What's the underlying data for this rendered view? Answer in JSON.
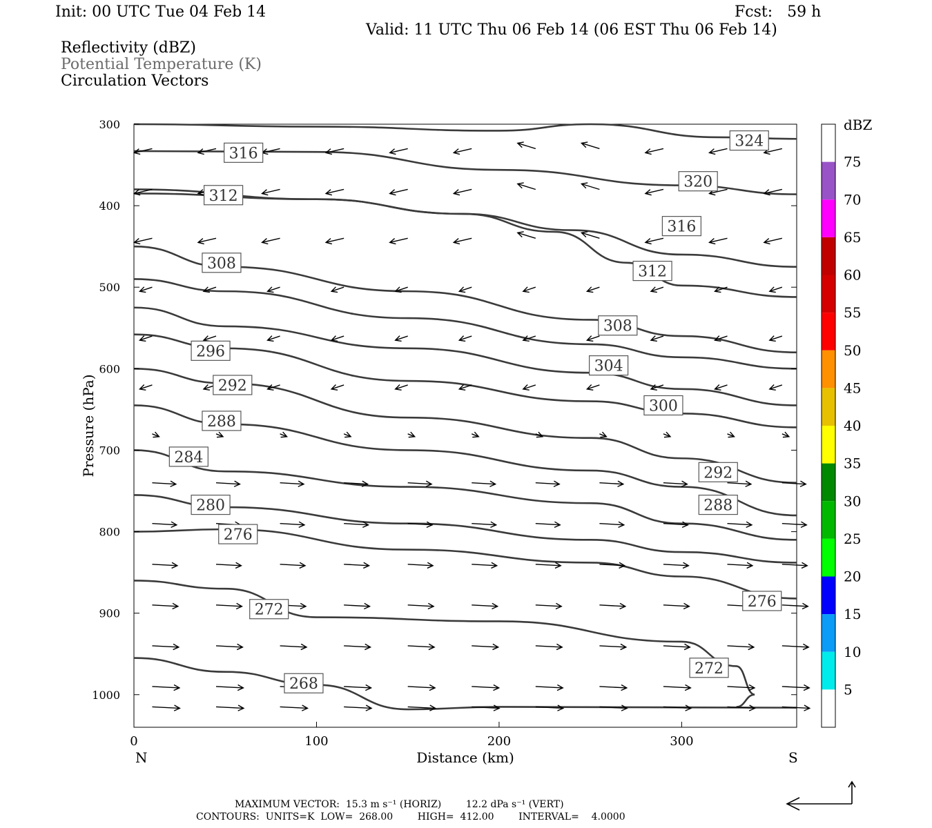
{
  "header": {
    "init": "Init: 00 UTC Tue 04 Feb 14",
    "fcst": "Fcst:   59 h",
    "valid": "Valid: 11 UTC Thu 06 Feb 14 (06 EST Thu 06 Feb 14)",
    "field1": "Reflectivity (dBZ)",
    "field2": "Potential Temperature (K)",
    "field3": "Circulation Vectors"
  },
  "chart_data": {
    "type": "cross-section",
    "xlabel": "Distance (km)",
    "ylabel": "Pressure (hPa)",
    "xlim": [
      0,
      363
    ],
    "ylim": [
      300,
      1040
    ],
    "x_ticks": [
      0,
      100,
      200,
      300
    ],
    "y_ticks": [
      300,
      400,
      500,
      600,
      700,
      800,
      900,
      1000
    ],
    "left_end_label": "N",
    "right_end_label": "S",
    "colorbar": {
      "title": "dBZ",
      "levels": [
        75,
        70,
        65,
        60,
        55,
        50,
        45,
        40,
        35,
        30,
        25,
        20,
        15,
        10,
        5
      ],
      "colors": [
        "#ffffff",
        "#9854c6",
        "#ff00ff",
        "#c00000",
        "#d40000",
        "#ff0000",
        "#ff9000",
        "#e7c000",
        "#ffff00",
        "#008800",
        "#00b800",
        "#00ff00",
        "#0000ff",
        "#0a9cf7",
        "#00ebeb",
        "#ffffff"
      ]
    },
    "isentropes": [
      {
        "label": "324",
        "px": [
          [
            0,
            300
          ],
          [
            100,
            303
          ],
          [
            200,
            308
          ],
          [
            250,
            300
          ],
          [
            320,
            316
          ],
          [
            363,
            318
          ]
        ]
      },
      {
        "label": "320",
        "px": [
          [
            0,
            333
          ],
          [
            100,
            334
          ],
          [
            200,
            356
          ],
          [
            300,
            375
          ],
          [
            363,
            386
          ]
        ]
      },
      {
        "label": "316",
        "px": [
          [
            0,
            380
          ],
          [
            100,
            392
          ],
          [
            180,
            410
          ],
          [
            240,
            430
          ],
          [
            300,
            460
          ],
          [
            363,
            475
          ]
        ]
      },
      {
        "label": "312",
        "px": [
          [
            0,
            385
          ],
          [
            100,
            392
          ],
          [
            180,
            410
          ],
          [
            230,
            432
          ],
          [
            270,
            470
          ],
          [
            300,
            498
          ],
          [
            363,
            512
          ]
        ]
      },
      {
        "label": "308",
        "px": [
          [
            0,
            450
          ],
          [
            50,
            475
          ],
          [
            150,
            505
          ],
          [
            250,
            540
          ],
          [
            300,
            560
          ],
          [
            363,
            580
          ]
        ]
      },
      {
        "label": "304",
        "px": [
          [
            0,
            490
          ],
          [
            50,
            505
          ],
          [
            150,
            538
          ],
          [
            250,
            570
          ],
          [
            300,
            586
          ],
          [
            363,
            600
          ]
        ]
      },
      {
        "label": "300",
        "px": [
          [
            0,
            525
          ],
          [
            50,
            548
          ],
          [
            150,
            575
          ],
          [
            250,
            605
          ],
          [
            300,
            625
          ],
          [
            363,
            645
          ]
        ]
      },
      {
        "label": "296",
        "px": [
          [
            0,
            558
          ],
          [
            50,
            575
          ],
          [
            150,
            615
          ],
          [
            250,
            640
          ],
          [
            300,
            655
          ],
          [
            363,
            672
          ]
        ]
      },
      {
        "label": "292",
        "px": [
          [
            0,
            600
          ],
          [
            50,
            618
          ],
          [
            150,
            660
          ],
          [
            250,
            685
          ],
          [
            300,
            710
          ],
          [
            363,
            740
          ]
        ]
      },
      {
        "label": "288",
        "px": [
          [
            0,
            645
          ],
          [
            50,
            668
          ],
          [
            150,
            700
          ],
          [
            250,
            725
          ],
          [
            300,
            745
          ],
          [
            363,
            780
          ]
        ]
      },
      {
        "label": "284",
        "px": [
          [
            0,
            700
          ],
          [
            50,
            726
          ],
          [
            150,
            745
          ],
          [
            250,
            765
          ],
          [
            300,
            790
          ],
          [
            363,
            810
          ]
        ]
      },
      {
        "label": "280",
        "px": [
          [
            0,
            755
          ],
          [
            50,
            770
          ],
          [
            150,
            790
          ],
          [
            250,
            810
          ],
          [
            300,
            825
          ],
          [
            363,
            838
          ]
        ]
      },
      {
        "label": "276",
        "px": [
          [
            0,
            800
          ],
          [
            50,
            797
          ],
          [
            150,
            822
          ],
          [
            250,
            838
          ],
          [
            300,
            855
          ],
          [
            363,
            882
          ]
        ]
      },
      {
        "label": "272",
        "px": [
          [
            0,
            860
          ],
          [
            50,
            870
          ],
          [
            100,
            905
          ],
          [
            200,
            910
          ],
          [
            300,
            935
          ],
          [
            330,
            965
          ],
          [
            340,
            1000
          ],
          [
            330,
            1015
          ]
        ]
      },
      {
        "label": "268",
        "px": [
          [
            0,
            955
          ],
          [
            50,
            972
          ],
          [
            100,
            988
          ],
          [
            150,
            1018
          ],
          [
            200,
            1015
          ],
          [
            363,
            1016
          ]
        ]
      }
    ],
    "contour_labels": [
      {
        "text": "324",
        "x": 337,
        "p": 320
      },
      {
        "text": "316",
        "x": 60,
        "p": 335
      },
      {
        "text": "320",
        "x": 309,
        "p": 370
      },
      {
        "text": "312",
        "x": 49,
        "p": 387
      },
      {
        "text": "316",
        "x": 300,
        "p": 425
      },
      {
        "text": "308",
        "x": 48,
        "p": 470
      },
      {
        "text": "312",
        "x": 284,
        "p": 480
      },
      {
        "text": "308",
        "x": 265,
        "p": 547
      },
      {
        "text": "296",
        "x": 42,
        "p": 578
      },
      {
        "text": "304",
        "x": 260,
        "p": 596
      },
      {
        "text": "292",
        "x": 54,
        "p": 620
      },
      {
        "text": "300",
        "x": 290,
        "p": 645
      },
      {
        "text": "288",
        "x": 48,
        "p": 664
      },
      {
        "text": "284",
        "x": 30,
        "p": 708
      },
      {
        "text": "292",
        "x": 320,
        "p": 727
      },
      {
        "text": "280",
        "x": 42,
        "p": 767
      },
      {
        "text": "288",
        "x": 320,
        "p": 767
      },
      {
        "text": "276",
        "x": 57,
        "p": 803
      },
      {
        "text": "276",
        "x": 344,
        "p": 885
      },
      {
        "text": "272",
        "x": 74,
        "p": 895
      },
      {
        "text": "272",
        "x": 315,
        "p": 967
      },
      {
        "text": "268",
        "x": 93,
        "p": 986
      }
    ],
    "max_vector_text": "MAXIMUM VECTOR:  15.3 m s⁻¹ (HORIZ)        12.2 dPa s⁻¹ (VERT)",
    "contours_text": "CONTOURS:  UNITS=K  LOW=  268.00        HIGH=  412.00        INTERVAL=    4.0000",
    "contour_levels": {
      "units": "K",
      "low": 268.0,
      "high": 412.0,
      "interval": 4.0
    }
  }
}
